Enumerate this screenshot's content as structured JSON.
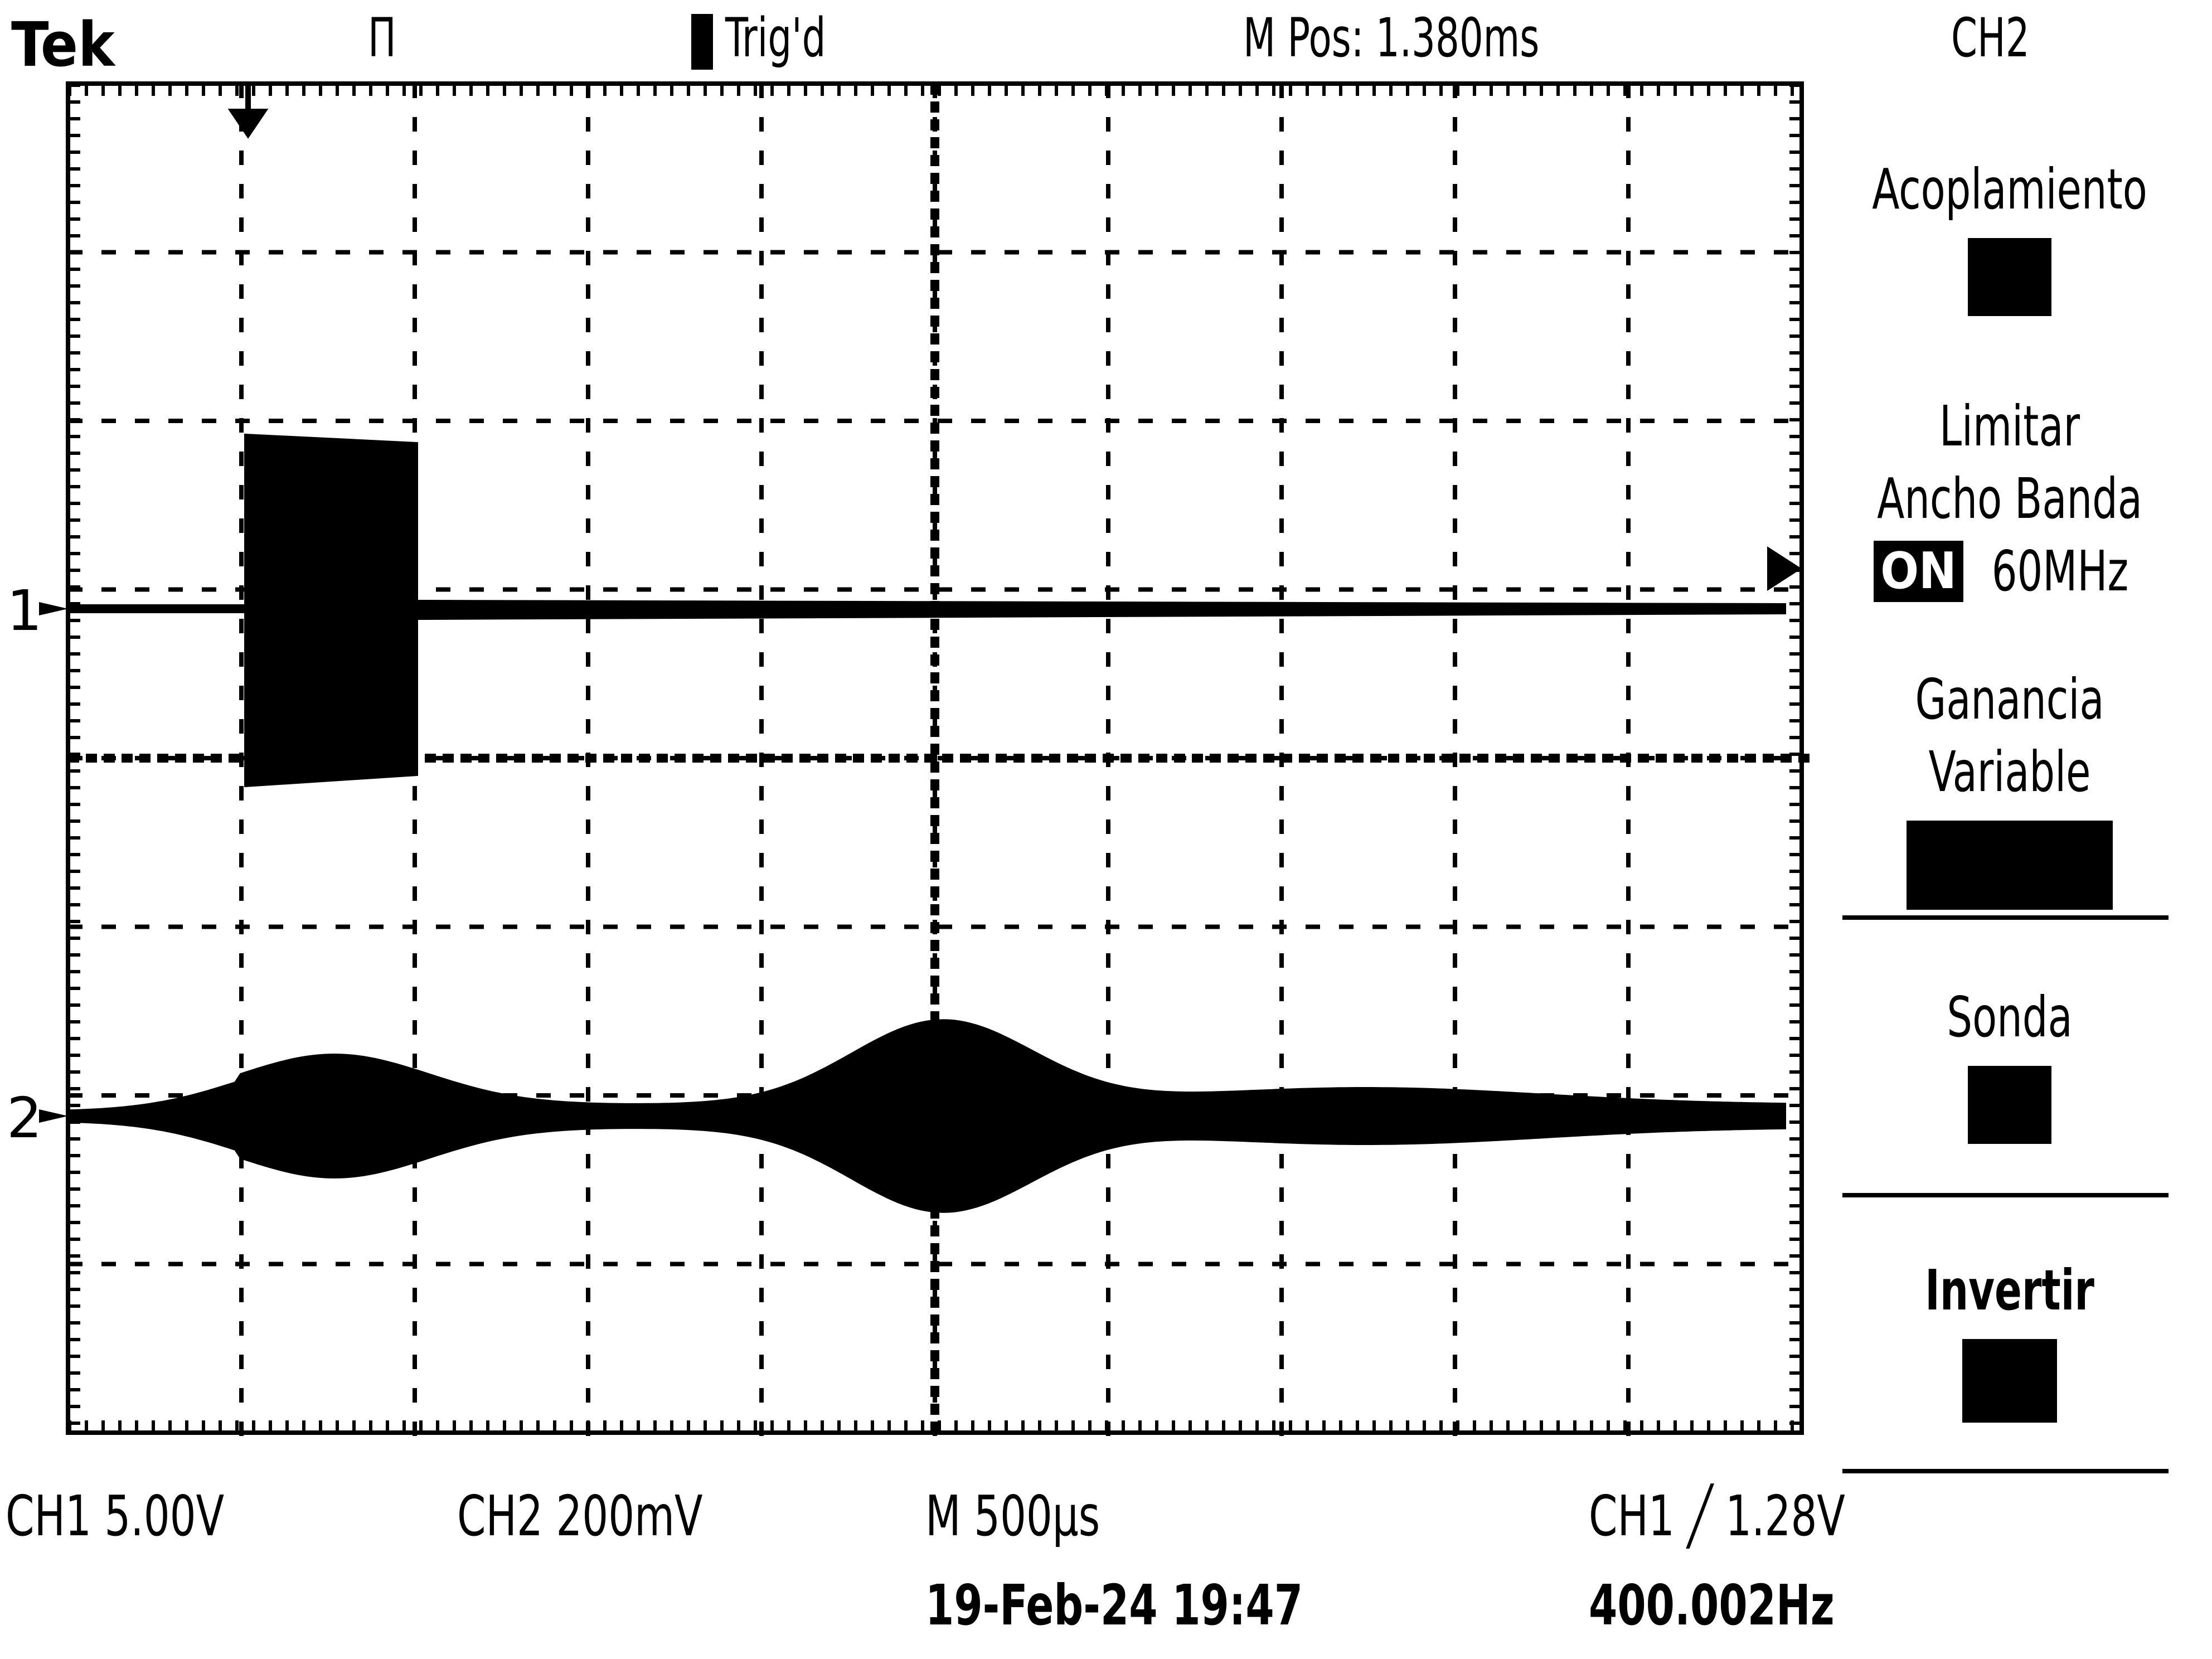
{
  "header": {
    "brand": "Tek",
    "trigger_mode": "Π",
    "trigger_status": "Trig'd",
    "main_position": "M Pos: 1.380ms",
    "menu_channel": "CH2"
  },
  "menu": {
    "coupling": {
      "label": "Acoplamiento"
    },
    "bw_limit": {
      "label_line1": "Limitar",
      "label_line2": "Ancho Banda",
      "tag": "ON",
      "value": "60MHz"
    },
    "variable_gain": {
      "label_line1": "Ganancia",
      "label_line2": "Variable"
    },
    "probe": {
      "label": "Sonda"
    },
    "invert": {
      "label": "Invertir"
    }
  },
  "markers": {
    "ch1": "1",
    "ch2": "2"
  },
  "status": {
    "ch1_scale": "CH1  5.00V",
    "ch2_scale": "CH2  200mV",
    "timebase": "M 500µs",
    "trigger": "CH1 ╱ 1.28V",
    "date": "19-Feb-24 19:47",
    "frequency": "400.002Hz"
  },
  "colors": {
    "background": "#ffffff",
    "trace": "#000000"
  }
}
